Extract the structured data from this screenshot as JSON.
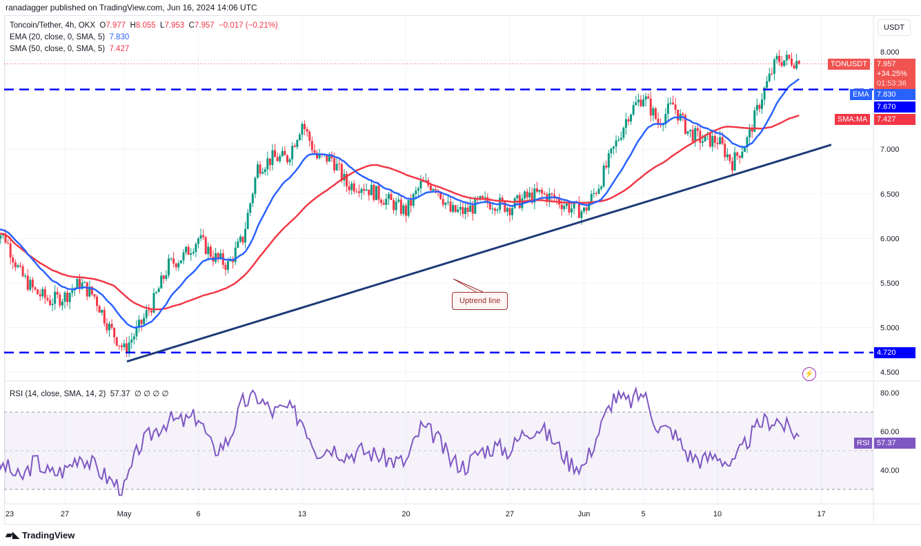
{
  "header": {
    "published": "ranadagger published on TradingView.com, Jun 16, 2024 14:06 UTC"
  },
  "legend": {
    "symbol": "Toncoin/Tether, 4h, OKX",
    "o_label": "O",
    "o": "7.977",
    "h_label": "H",
    "h": "8.055",
    "l_label": "L",
    "l": "7.953",
    "c_label": "C",
    "c": "7.957",
    "change": "−0.017 (−0.21%)",
    "ema": "EMA (20, close, 0, SMA, 5)",
    "ema_val": "7.830",
    "sma": "SMA (50, close, 0, SMA, 5)",
    "sma_val": "7.427",
    "rsi": "RSI (14, close, SMA, 14, 2)",
    "rsi_val": "57.37",
    "rsi_extra": "∅ ∅ ∅ ∅"
  },
  "price_axis": {
    "currency": "USDT",
    "ticks": [
      "8.000",
      "7.000",
      "6.500",
      "6.000",
      "5.500",
      "5.000",
      "4.500"
    ]
  },
  "tags": {
    "symbol": "TONUSDT",
    "price": "7.957",
    "pct": "+34.25%",
    "countdown": "01:53:36",
    "ema_label": "EMA",
    "ema": "7.830",
    "level_upper": "7.670",
    "sma_label": "SMA:MA",
    "sma": "7.427",
    "level_lower": "4.720",
    "rsi_label": "RSI",
    "rsi": "57.37"
  },
  "rsi_axis": {
    "ticks": [
      "80.00",
      "60.00",
      "40.00"
    ]
  },
  "time_axis": {
    "ticks": [
      "23",
      "27",
      "May",
      "6",
      "13",
      "20",
      "27",
      "Jun",
      "5",
      "10",
      "17"
    ]
  },
  "annotation": {
    "text": "Uptrend line"
  },
  "footer": {
    "brand": "TradingView"
  },
  "colors": {
    "up": "#089981",
    "down": "#f23645",
    "ema": "#2962ff",
    "sma": "#f23645",
    "levels": "#0000ff",
    "trend": "#1e3a78",
    "rsi": "#7e57c2"
  },
  "chart_data": {
    "type": "candlestick",
    "title": "Toncoin/Tether, 4h, OKX",
    "ylim": [
      4.4,
      8.4
    ],
    "horizontal_levels": [
      7.67,
      4.72
    ],
    "trendline": {
      "from": {
        "date": "May 1",
        "price": 4.62
      },
      "to": {
        "date": "Jun 17",
        "price": 7.05
      }
    },
    "daily_close_start": "Apr 23",
    "daily_close": [
      6.0,
      5.6,
      5.4,
      5.3,
      5.35,
      5.5,
      5.35,
      5.0,
      4.75,
      5.0,
      5.3,
      5.7,
      5.8,
      6.0,
      5.8,
      5.7,
      6.0,
      6.8,
      6.9,
      6.9,
      7.3,
      6.9,
      6.9,
      6.6,
      6.6,
      6.5,
      6.4,
      6.3,
      6.6,
      6.6,
      6.3,
      6.3,
      6.4,
      6.4,
      6.35,
      6.45,
      6.5,
      6.45,
      6.35,
      6.3,
      6.6,
      7.0,
      7.4,
      7.6,
      7.3,
      7.5,
      7.2,
      7.1,
      7.1,
      6.85,
      7.1,
      7.6,
      8.0,
      8.0,
      7.957
    ],
    "rsi_daily": [
      42,
      35,
      45,
      38,
      40,
      48,
      42,
      35,
      30,
      52,
      60,
      66,
      65,
      68,
      50,
      55,
      75,
      78,
      70,
      72,
      66,
      50,
      52,
      48,
      50,
      48,
      45,
      44,
      62,
      58,
      45,
      42,
      50,
      52,
      50,
      60,
      62,
      55,
      44,
      42,
      60,
      78,
      75,
      80,
      62,
      60,
      48,
      45,
      48,
      42,
      55,
      65,
      66,
      60,
      57.37
    ],
    "rsi_ylim": [
      25,
      85
    ],
    "rsi_bands": [
      70,
      30
    ]
  }
}
